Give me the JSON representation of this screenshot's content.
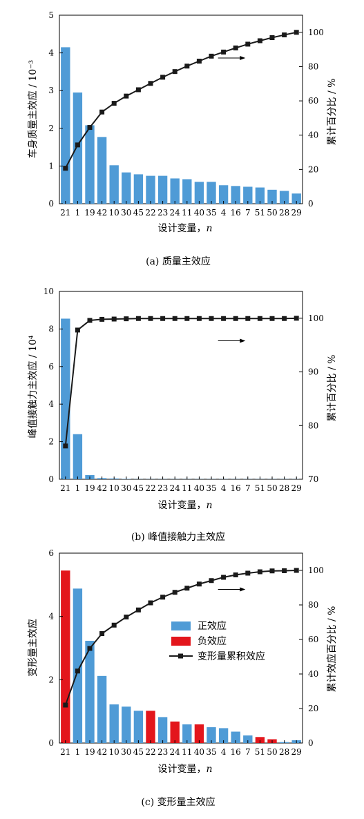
{
  "figure": {
    "xlabel": "设计变量，",
    "xlabel_var": "n",
    "categories": [
      "21",
      "1",
      "19",
      "42",
      "10",
      "30",
      "45",
      "22",
      "23",
      "24",
      "11",
      "40",
      "35",
      "4",
      "16",
      "7",
      "51",
      "50",
      "28",
      "29"
    ]
  },
  "colors": {
    "positive": "#4f9bd6",
    "negative": "#e3161c",
    "line": "#1a1a1a"
  },
  "chart_data": [
    {
      "type": "bar",
      "caption": "(a)  质量主效应",
      "ylabel_left": "车身质量主效应 / 10⁻³",
      "ylabel_right": "累计百分比 / %",
      "ylim_left": [
        0,
        5
      ],
      "ylim_right": [
        0,
        110
      ],
      "yticks_left": [
        0,
        1,
        2,
        3,
        4,
        5
      ],
      "yticks_right": [
        0,
        20,
        40,
        60,
        80,
        100
      ],
      "categories": [
        "21",
        "1",
        "19",
        "42",
        "10",
        "30",
        "45",
        "22",
        "23",
        "24",
        "11",
        "40",
        "35",
        "4",
        "16",
        "7",
        "51",
        "50",
        "28",
        "29"
      ],
      "values": [
        4.15,
        2.95,
        2.08,
        1.77,
        1.02,
        0.83,
        0.78,
        0.74,
        0.74,
        0.67,
        0.65,
        0.58,
        0.58,
        0.49,
        0.47,
        0.45,
        0.43,
        0.37,
        0.34,
        0.27
      ],
      "signs": [
        1,
        1,
        1,
        1,
        1,
        1,
        1,
        1,
        1,
        1,
        1,
        1,
        1,
        1,
        1,
        1,
        1,
        1,
        1,
        1
      ],
      "cumulative": [
        20.7,
        34.3,
        44.5,
        53.5,
        58.6,
        62.8,
        66.5,
        70.2,
        73.8,
        77.1,
        80.3,
        83.2,
        86.1,
        88.5,
        90.9,
        93.1,
        95.1,
        96.9,
        98.5,
        100.0
      ],
      "arrow_y": 85
    },
    {
      "type": "bar",
      "caption": "(b)  峰值接触力主效应",
      "ylabel_left": "峰值接触力主效应 / 10⁴",
      "ylabel_right": "累计百分比 / %",
      "ylim_left": [
        0,
        10
      ],
      "ylim_right": [
        70,
        105
      ],
      "yticks_left": [
        0,
        2,
        4,
        6,
        8,
        10
      ],
      "yticks_right": [
        70,
        80,
        90,
        100
      ],
      "categories": [
        "21",
        "1",
        "19",
        "42",
        "10",
        "30",
        "45",
        "22",
        "23",
        "24",
        "11",
        "40",
        "35",
        "4",
        "16",
        "7",
        "51",
        "50",
        "28",
        "29"
      ],
      "values": [
        8.55,
        2.4,
        0.22,
        0.06,
        0.04,
        0.02,
        0.01,
        0.01,
        0.01,
        0.01,
        0.01,
        0.01,
        0.01,
        0.01,
        0.01,
        0.01,
        0.01,
        0.01,
        0.01,
        0.01
      ],
      "signs": [
        1,
        1,
        1,
        1,
        1,
        1,
        1,
        1,
        1,
        1,
        1,
        1,
        1,
        1,
        1,
        1,
        1,
        1,
        1,
        1
      ],
      "cumulative": [
        76.2,
        97.8,
        99.6,
        99.8,
        99.85,
        99.9,
        99.95,
        99.95,
        99.95,
        99.95,
        99.95,
        99.95,
        99.95,
        99.95,
        99.95,
        99.95,
        99.95,
        99.95,
        99.95,
        100.0
      ],
      "arrow_y": 95.8
    },
    {
      "type": "bar",
      "caption": "(c)  变形量主效应",
      "ylabel_left": "变形量主效应",
      "ylabel_right": "累计效应百分比 / %",
      "ylim_left": [
        0,
        6
      ],
      "ylim_right": [
        0,
        110
      ],
      "yticks_left": [
        0,
        2,
        4,
        6
      ],
      "yticks_right": [
        0,
        20,
        40,
        60,
        80,
        100
      ],
      "categories": [
        "21",
        "1",
        "19",
        "42",
        "10",
        "30",
        "45",
        "22",
        "23",
        "24",
        "11",
        "40",
        "35",
        "4",
        "16",
        "7",
        "51",
        "50",
        "28",
        "29"
      ],
      "values": [
        5.45,
        4.88,
        3.23,
        2.12,
        1.22,
        1.15,
        1.02,
        1.02,
        0.82,
        0.68,
        0.59,
        0.59,
        0.5,
        0.47,
        0.36,
        0.24,
        0.19,
        0.12,
        0.03,
        0.09
      ],
      "signs": [
        -1,
        1,
        1,
        1,
        1,
        1,
        1,
        -1,
        1,
        -1,
        1,
        -1,
        1,
        1,
        1,
        1,
        -1,
        -1,
        1,
        1
      ],
      "cumulative": [
        22.0,
        41.7,
        54.8,
        63.4,
        68.3,
        73.0,
        77.1,
        81.2,
        84.5,
        87.3,
        89.7,
        92.1,
        94.1,
        96.0,
        97.4,
        98.4,
        99.2,
        99.7,
        99.8,
        100.0
      ],
      "arrow_y": 89,
      "legend": {
        "position": "center-right",
        "items": [
          "正效应",
          "负效应",
          "变形量累积效应"
        ]
      }
    }
  ]
}
